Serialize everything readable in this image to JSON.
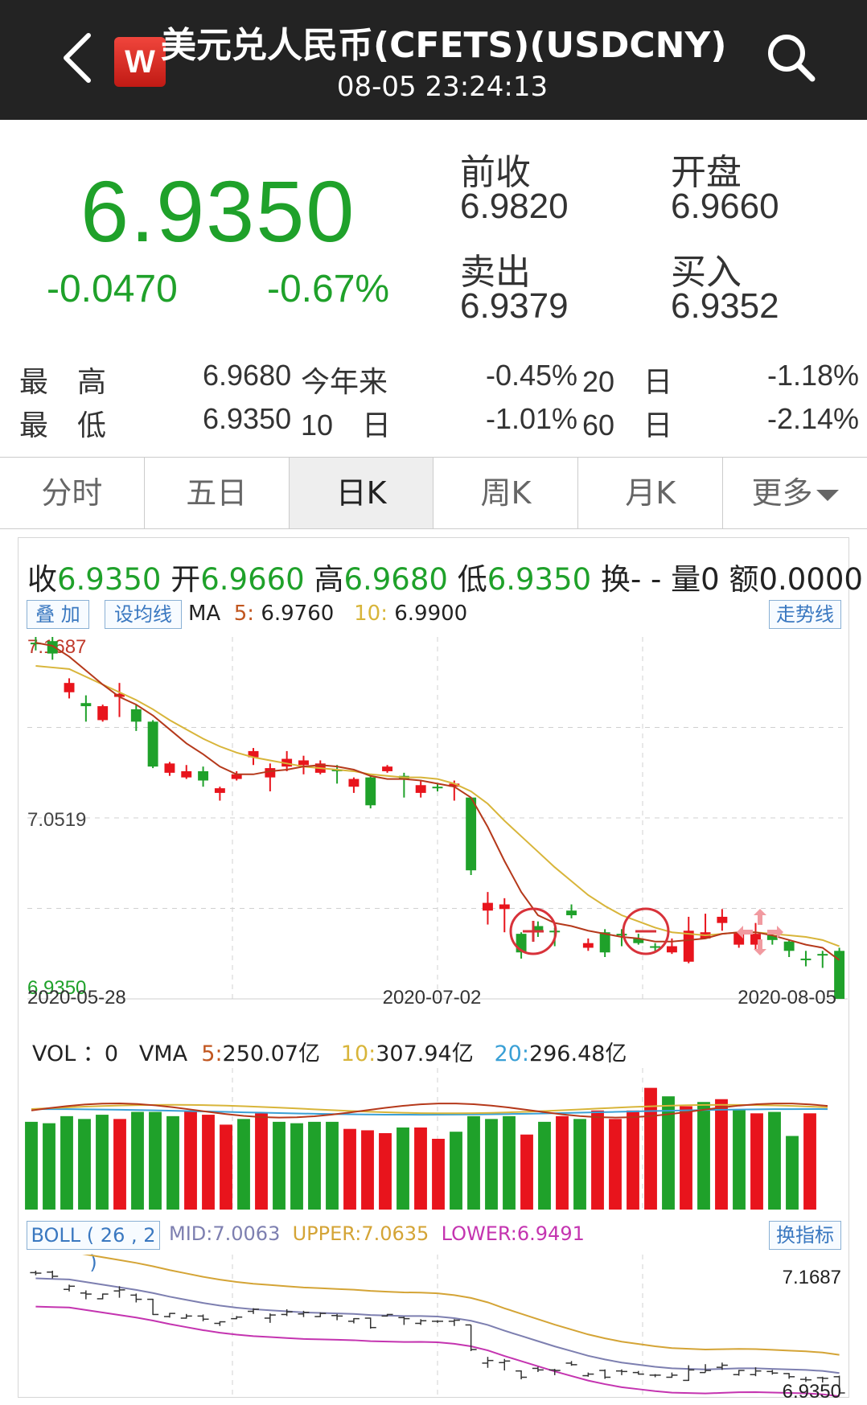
{
  "header": {
    "logo_letter": "W",
    "title": "美元兑人民币(CFETS)(USDCNY)",
    "time": "08-05 23:24:13"
  },
  "quote": {
    "price": "6.9350",
    "change": "-0.0470",
    "change_pct": "-0.67%",
    "prev_close_label": "前收",
    "prev_close": "6.9820",
    "open_label": "开盘",
    "open": "6.9660",
    "ask_label": "卖出",
    "ask": "6.9379",
    "bid_label": "买入",
    "bid": "6.9352"
  },
  "stats": {
    "high_label": "最　高",
    "high": "6.9680",
    "low_label": "最　低",
    "low": "6.9350",
    "ytd_label": "今年来",
    "ytd": "-0.45%",
    "d10_label": "10　日",
    "d10": "-1.01%",
    "d20_label": "20　日",
    "d20": "-1.18%",
    "d60_label": "60　日",
    "d60": "-2.14%"
  },
  "tabs": [
    "分时",
    "五日",
    "日K",
    "周K",
    "月K",
    "更多"
  ],
  "active_tab": 2,
  "info": {
    "close_label": "收",
    "close": "6.9350",
    "open_label": "开",
    "open": "6.9660",
    "high_label": "高",
    "high": "6.9680",
    "low_label": "低",
    "low": "6.9350",
    "turnover_label": "换",
    "turnover": "- -",
    "volume_label": "量",
    "volume": "0",
    "amount_label": "额",
    "amount": "0.0000"
  },
  "buttons": {
    "overlay": "叠 加",
    "set_ma": "设均线",
    "trend": "走势线",
    "switch_indicator": "换指标"
  },
  "ma": {
    "label": "MA",
    "ma5_label": "5",
    "ma5": "6.9760",
    "ma10_label": "10",
    "ma10": "6.9900"
  },
  "vol": {
    "label": "VOL",
    "value": "0",
    "vma_label": "VMA",
    "vma5_label": "5",
    "vma5": "250.07亿",
    "vma10_label": "10",
    "vma10": "307.94亿",
    "vma20_label": "20",
    "vma20": "296.48亿"
  },
  "boll": {
    "label": "BOLL ( 26 , 2 )",
    "mid_label": "MID:",
    "mid": "7.0063",
    "upper_label": "UPPER:",
    "upper": "7.0635",
    "lower_label": "LOWER:",
    "lower": "6.9491"
  },
  "colors": {
    "up": "#e8141c",
    "down": "#1fa12a",
    "ma5": "#b5391b",
    "ma10": "#d8b53a",
    "ma20": "#3aa0d6",
    "mid": "#7d7fb0",
    "upper": "#d4a436",
    "lower": "#c434b0"
  },
  "chart_data": {
    "type": "candlestick",
    "y_max_label": "7.1687",
    "y_mid_label": "7.0519",
    "y_min_label": "6.9350",
    "ylim": [
      6.935,
      7.1687
    ],
    "x_labels": [
      "2020-05-28",
      "2020-07-02",
      "2020-08-05"
    ],
    "candles": [
      {
        "o": 7.165,
        "c": 7.164,
        "h": 7.1687,
        "l": 7.16
      },
      {
        "o": 7.166,
        "c": 7.158,
        "h": 7.1687,
        "l": 7.154
      },
      {
        "o": 7.133,
        "c": 7.139,
        "h": 7.142,
        "l": 7.129
      },
      {
        "o": 7.126,
        "c": 7.124,
        "h": 7.131,
        "l": 7.114
      },
      {
        "o": 7.115,
        "c": 7.124,
        "h": 7.125,
        "l": 7.114
      },
      {
        "o": 7.13,
        "c": 7.132,
        "h": 7.139,
        "l": 7.117
      },
      {
        "o": 7.122,
        "c": 7.114,
        "h": 7.125,
        "l": 7.108
      },
      {
        "o": 7.114,
        "c": 7.085,
        "h": 7.115,
        "l": 7.084
      },
      {
        "o": 7.081,
        "c": 7.087,
        "h": 7.088,
        "l": 7.079
      },
      {
        "o": 7.078,
        "c": 7.082,
        "h": 7.086,
        "l": 7.077
      },
      {
        "o": 7.082,
        "c": 7.076,
        "h": 7.085,
        "l": 7.072
      },
      {
        "o": 7.068,
        "c": 7.071,
        "h": 7.072,
        "l": 7.063
      },
      {
        "o": 7.077,
        "c": 7.08,
        "h": 7.082,
        "l": 7.076
      },
      {
        "o": 7.091,
        "c": 7.095,
        "h": 7.097,
        "l": 7.086
      },
      {
        "o": 7.078,
        "c": 7.084,
        "h": 7.087,
        "l": 7.069
      },
      {
        "o": 7.085,
        "c": 7.09,
        "h": 7.095,
        "l": 7.082
      },
      {
        "o": 7.086,
        "c": 7.089,
        "h": 7.092,
        "l": 7.08
      },
      {
        "o": 7.081,
        "c": 7.087,
        "h": 7.089,
        "l": 7.08
      },
      {
        "o": 7.083,
        "c": 7.082,
        "h": 7.086,
        "l": 7.074
      },
      {
        "o": 7.072,
        "c": 7.077,
        "h": 7.078,
        "l": 7.068
      },
      {
        "o": 7.078,
        "c": 7.06,
        "h": 7.079,
        "l": 7.058
      },
      {
        "o": 7.082,
        "c": 7.085,
        "h": 7.086,
        "l": 7.081
      },
      {
        "o": 7.079,
        "c": 7.077,
        "h": 7.081,
        "l": 7.065
      },
      {
        "o": 7.068,
        "c": 7.073,
        "h": 7.076,
        "l": 7.065
      },
      {
        "o": 7.072,
        "c": 7.072,
        "h": 7.074,
        "l": 7.069
      },
      {
        "o": 7.072,
        "c": 7.074,
        "h": 7.076,
        "l": 7.063
      },
      {
        "o": 7.065,
        "c": 7.018,
        "h": 7.065,
        "l": 7.015
      },
      {
        "o": 6.992,
        "c": 6.997,
        "h": 7.004,
        "l": 6.983
      },
      {
        "o": 6.993,
        "c": 6.996,
        "h": 7.0,
        "l": 6.978
      },
      {
        "o": 6.977,
        "c": 6.965,
        "h": 6.978,
        "l": 6.961
      },
      {
        "o": 6.982,
        "c": 6.979,
        "h": 6.985,
        "l": 6.975
      },
      {
        "o": 6.979,
        "c": 6.978,
        "h": 6.981,
        "l": 6.969
      },
      {
        "o": 6.992,
        "c": 6.989,
        "h": 6.996,
        "l": 6.987
      },
      {
        "o": 6.968,
        "c": 6.971,
        "h": 6.974,
        "l": 6.966
      },
      {
        "o": 6.978,
        "c": 6.965,
        "h": 6.98,
        "l": 6.962
      },
      {
        "o": 6.977,
        "c": 6.976,
        "h": 6.98,
        "l": 6.969
      },
      {
        "o": 6.974,
        "c": 6.971,
        "h": 6.977,
        "l": 6.97
      },
      {
        "o": 6.969,
        "c": 6.969,
        "h": 6.971,
        "l": 6.965
      },
      {
        "o": 6.965,
        "c": 6.969,
        "h": 6.974,
        "l": 6.964
      },
      {
        "o": 6.959,
        "c": 6.979,
        "h": 6.988,
        "l": 6.958
      },
      {
        "o": 6.974,
        "c": 6.978,
        "h": 6.99,
        "l": 6.974
      },
      {
        "o": 6.984,
        "c": 6.988,
        "h": 6.993,
        "l": 6.979
      },
      {
        "o": 6.97,
        "c": 6.978,
        "h": 6.979,
        "l": 6.968
      },
      {
        "o": 6.97,
        "c": 6.977,
        "h": 6.984,
        "l": 6.967
      },
      {
        "o": 6.976,
        "c": 6.973,
        "h": 6.979,
        "l": 6.97
      },
      {
        "o": 6.972,
        "c": 6.966,
        "h": 6.973,
        "l": 6.962
      },
      {
        "o": 6.961,
        "c": 6.96,
        "h": 6.966,
        "l": 6.956
      },
      {
        "o": 6.964,
        "c": 6.963,
        "h": 6.966,
        "l": 6.955
      },
      {
        "o": 6.966,
        "c": 6.935,
        "h": 6.968,
        "l": 6.935
      }
    ],
    "ma5": [
      7.165,
      7.163,
      7.156,
      7.147,
      7.138,
      7.13,
      7.125,
      7.118,
      7.109,
      7.1,
      7.093,
      7.085,
      7.08,
      7.08,
      7.082,
      7.083,
      7.085,
      7.086,
      7.085,
      7.083,
      7.079,
      7.077,
      7.077,
      7.076,
      7.074,
      7.072,
      7.065,
      7.046,
      7.024,
      7.004,
      6.989,
      6.984,
      6.982,
      6.979,
      6.977,
      6.975,
      6.974,
      6.972,
      6.972,
      6.973,
      6.974,
      6.977,
      6.978,
      6.978,
      6.976,
      6.973,
      6.97,
      6.968,
      6.96
    ],
    "ma10": [
      7.15,
      7.149,
      7.148,
      7.143,
      7.138,
      7.133,
      7.128,
      7.122,
      7.115,
      7.109,
      7.103,
      7.098,
      7.094,
      7.091,
      7.089,
      7.087,
      7.085,
      7.084,
      7.083,
      7.082,
      7.08,
      7.079,
      7.078,
      7.078,
      7.077,
      7.074,
      7.069,
      7.061,
      7.05,
      7.04,
      7.03,
      7.02,
      7.011,
      7.002,
      6.995,
      6.989,
      6.985,
      6.981,
      6.978,
      6.977,
      6.976,
      6.977,
      6.978,
      6.978,
      6.977,
      6.976,
      6.975,
      6.973,
      6.969
    ],
    "volume": [
      {
        "v": 0.62,
        "up": false
      },
      {
        "v": 0.61,
        "up": false
      },
      {
        "v": 0.66,
        "up": false
      },
      {
        "v": 0.64,
        "up": false
      },
      {
        "v": 0.67,
        "up": false
      },
      {
        "v": 0.64,
        "up": true
      },
      {
        "v": 0.69,
        "up": false
      },
      {
        "v": 0.69,
        "up": false
      },
      {
        "v": 0.66,
        "up": false
      },
      {
        "v": 0.7,
        "up": true
      },
      {
        "v": 0.67,
        "up": true
      },
      {
        "v": 0.6,
        "up": true
      },
      {
        "v": 0.64,
        "up": false
      },
      {
        "v": 0.68,
        "up": true
      },
      {
        "v": 0.62,
        "up": false
      },
      {
        "v": 0.61,
        "up": false
      },
      {
        "v": 0.62,
        "up": false
      },
      {
        "v": 0.62,
        "up": false
      },
      {
        "v": 0.57,
        "up": true
      },
      {
        "v": 0.56,
        "up": true
      },
      {
        "v": 0.54,
        "up": true
      },
      {
        "v": 0.58,
        "up": false
      },
      {
        "v": 0.58,
        "up": true
      },
      {
        "v": 0.5,
        "up": true
      },
      {
        "v": 0.55,
        "up": false
      },
      {
        "v": 0.66,
        "up": false
      },
      {
        "v": 0.64,
        "up": false
      },
      {
        "v": 0.66,
        "up": false
      },
      {
        "v": 0.53,
        "up": true
      },
      {
        "v": 0.62,
        "up": false
      },
      {
        "v": 0.66,
        "up": true
      },
      {
        "v": 0.64,
        "up": false
      },
      {
        "v": 0.7,
        "up": true
      },
      {
        "v": 0.64,
        "up": true
      },
      {
        "v": 0.7,
        "up": true
      },
      {
        "v": 0.86,
        "up": true
      },
      {
        "v": 0.8,
        "up": false
      },
      {
        "v": 0.73,
        "up": true
      },
      {
        "v": 0.76,
        "up": false
      },
      {
        "v": 0.78,
        "up": true
      },
      {
        "v": 0.71,
        "up": false
      },
      {
        "v": 0.68,
        "up": true
      },
      {
        "v": 0.69,
        "up": false
      },
      {
        "v": 0.52,
        "up": false
      },
      {
        "v": 0.68,
        "up": true
      },
      {
        "v": 0.0,
        "up": false
      }
    ]
  }
}
